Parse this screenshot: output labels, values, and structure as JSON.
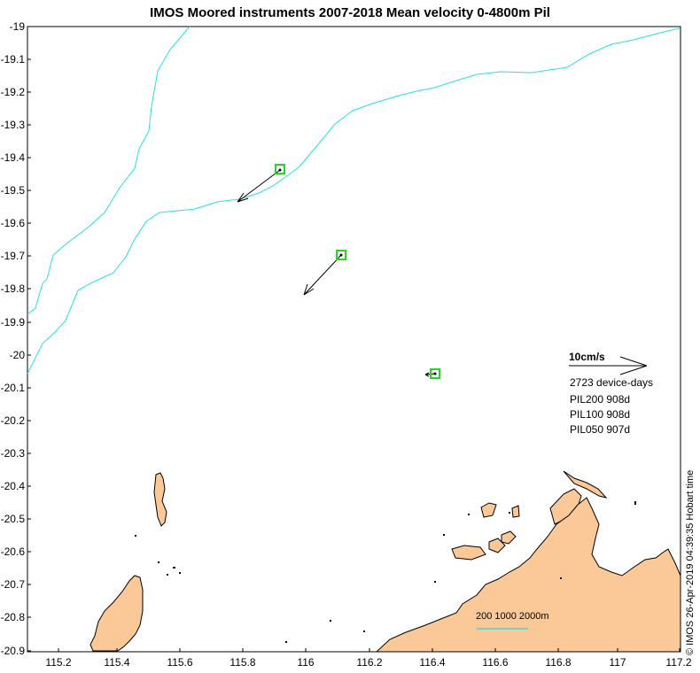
{
  "title": "IMOS Moored instruments 2007-2018 Mean velocity 0-4800m Pil",
  "y_ticks": [
    "-19",
    "-19.1",
    "-19.2",
    "-19.3",
    "-19.4",
    "-19.5",
    "-19.6",
    "-19.7",
    "-19.8",
    "-19.9",
    "-20",
    "-20.1",
    "-20.2",
    "-20.3",
    "-20.4",
    "-20.5",
    "-20.6",
    "-20.7",
    "-20.8",
    "-20.9"
  ],
  "x_ticks": [
    "115.2",
    "115.4",
    "115.6",
    "115.8",
    "116",
    "116.2",
    "116.4",
    "116.6",
    "116.8",
    "117",
    "117.2"
  ],
  "legend": {
    "scale_label": "10cm/s",
    "device_days": "2723 device-days",
    "instruments": [
      "PIL200 908d",
      "PIL100 908d",
      "PIL050 907d"
    ]
  },
  "bathymetry_legend": "200 1000 2000m",
  "timestamp": "© IMOS 26-Apr-2019 04:39:35 Hobart time",
  "colors": {
    "land": "#fbc898",
    "bathymetry": "#26e1e6",
    "mooring_marker": "#22d822",
    "vector": "#000000"
  },
  "moorings": [
    {
      "lon": 115.91,
      "lat": -19.435
    },
    {
      "lon": 116.11,
      "lat": -19.695
    },
    {
      "lon": 116.41,
      "lat": -20.055
    }
  ]
}
